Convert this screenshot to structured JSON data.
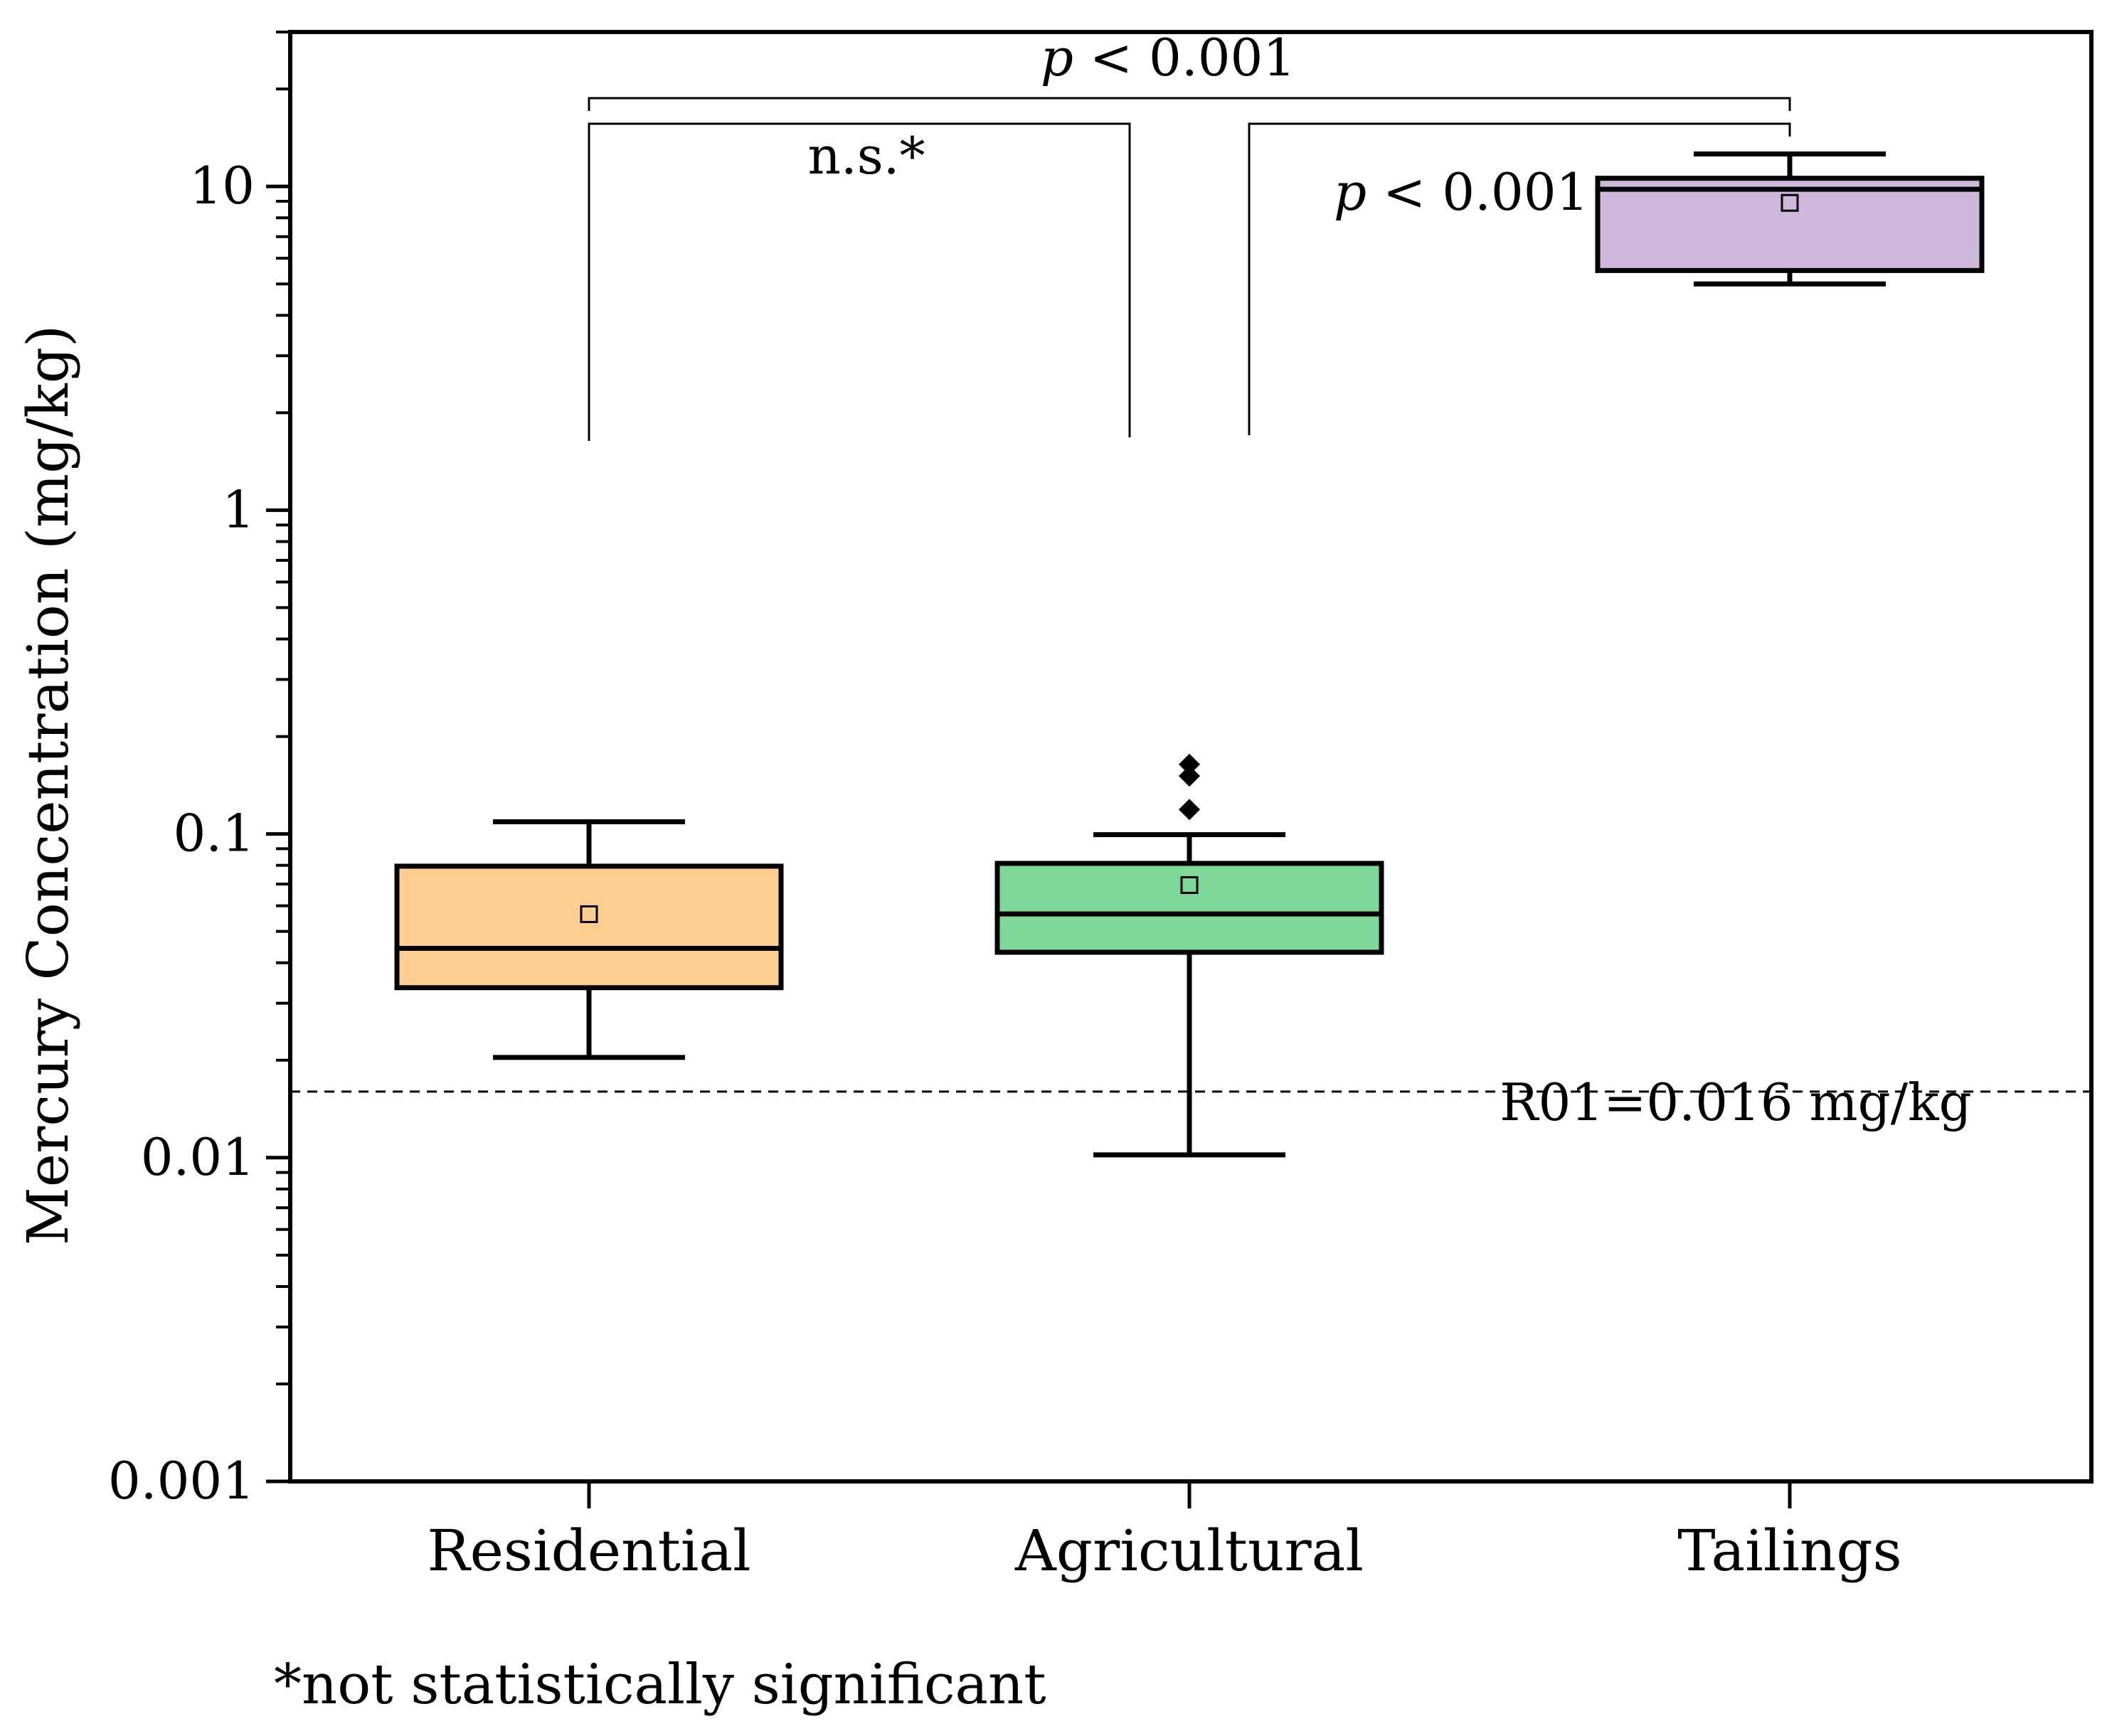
{
  "chart_data": {
    "type": "box",
    "ylabel": "Mercury Concentration (mg/kg)",
    "yscale": "log",
    "ylim": [
      0.001,
      30
    ],
    "yticks": [
      {
        "value": 0.001,
        "label": "0.001"
      },
      {
        "value": 0.01,
        "label": "0.01"
      },
      {
        "value": 0.1,
        "label": "0.1"
      },
      {
        "value": 1,
        "label": "1"
      },
      {
        "value": 10,
        "label": "10"
      }
    ],
    "categories": [
      "Residential",
      "Agricultural",
      "Tailings"
    ],
    "boxes": [
      {
        "category": "Residential",
        "color": "#FDCE8F",
        "whisker_low": 0.0204,
        "q1": 0.0335,
        "median": 0.0443,
        "q3": 0.0795,
        "whisker_high": 0.109,
        "mean": 0.0565,
        "outliers": []
      },
      {
        "category": "Agricultural",
        "color": "#7DD89A",
        "whisker_low": 0.0102,
        "q1": 0.0431,
        "median": 0.0566,
        "q3": 0.0811,
        "whisker_high": 0.0995,
        "mean": 0.0695,
        "outliers": [
          0.119,
          0.151,
          0.164
        ]
      },
      {
        "category": "Tailings",
        "color": "#CDB8DB",
        "whisker_low": 5.0,
        "q1": 5.5,
        "median": 9.8,
        "q3": 10.6,
        "whisker_high": 12.6,
        "mean": 8.9,
        "outliers": []
      }
    ],
    "reference_line": {
      "value": 0.016,
      "label": "R01=0.016 mg/kg"
    },
    "comparisons": [
      {
        "from": "Residential",
        "to": "Agricultural",
        "level": 1,
        "text": "n.s.*"
      },
      {
        "from": "Agricultural",
        "to": "Tailings",
        "level": 1,
        "p_italic": "p",
        "p_rest": " < 0.001"
      },
      {
        "from": "Residential",
        "to": "Tailings",
        "level": 2,
        "p_italic": "p",
        "p_rest": " < 0.001"
      }
    ],
    "footnote": "*not statistically significant"
  }
}
